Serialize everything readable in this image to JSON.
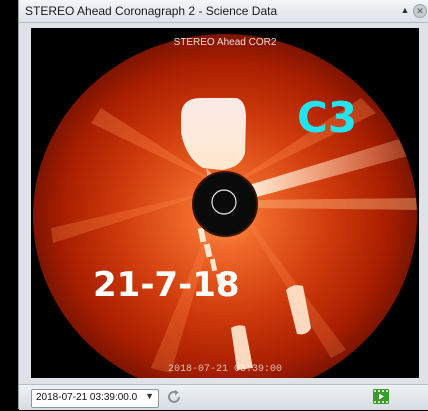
{
  "window": {
    "title": "STEREO Ahead Coronagraph 2 - Science Data",
    "collapse_glyph": "▲",
    "close_glyph": "✕"
  },
  "image": {
    "instrument_label": "STEREO Ahead COR2",
    "timestamp_label": "2018-07-21 03:39:00",
    "overlay_channel": "C3",
    "overlay_date": "21-7-18",
    "colors": {
      "disk_outer": "#b52200",
      "disk_mid": "#e5581e",
      "streamer": "#ffe2c4",
      "overlay_channel": "#22e3ef",
      "overlay_date": "#ffffff"
    }
  },
  "toolbar": {
    "date_value": "2018-07-21 03:39:00.0",
    "date_caret": "▼",
    "refresh_icon": "refresh-icon",
    "movie_icon": "movie-icon"
  }
}
